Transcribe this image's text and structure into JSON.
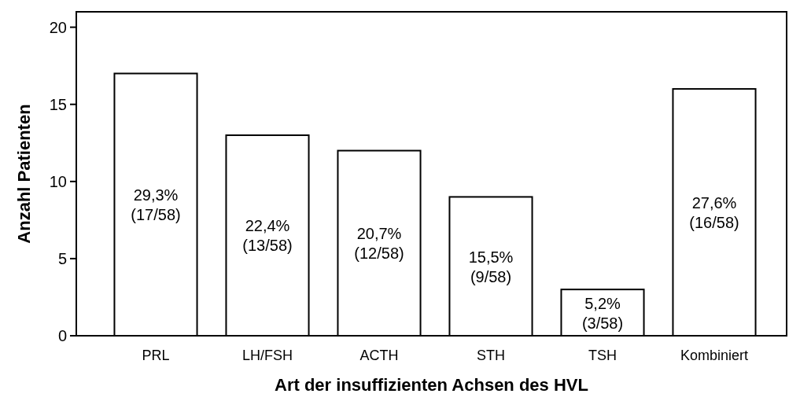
{
  "chart_data": {
    "type": "bar",
    "xlabel": "Art der insuffizienten Achsen des HVL",
    "ylabel": "Anzahl Patienten",
    "categories": [
      "PRL",
      "LH/FSH",
      "ACTH",
      "STH",
      "TSH",
      "Kombiniert"
    ],
    "values": [
      17,
      13,
      12,
      9,
      3,
      16
    ],
    "value_labels": [
      "29,3%\n(17/58)",
      "22,4%\n(13/58)",
      "20,7%\n(12/58)",
      "15,5%\n(9/58)",
      "5,2%\n(3/58)",
      "27,6%\n(16/58)"
    ],
    "color": "#ffffff",
    "ylim": [
      0,
      21
    ],
    "yticks": [
      0,
      5,
      10,
      15,
      20
    ],
    "grid": false
  }
}
